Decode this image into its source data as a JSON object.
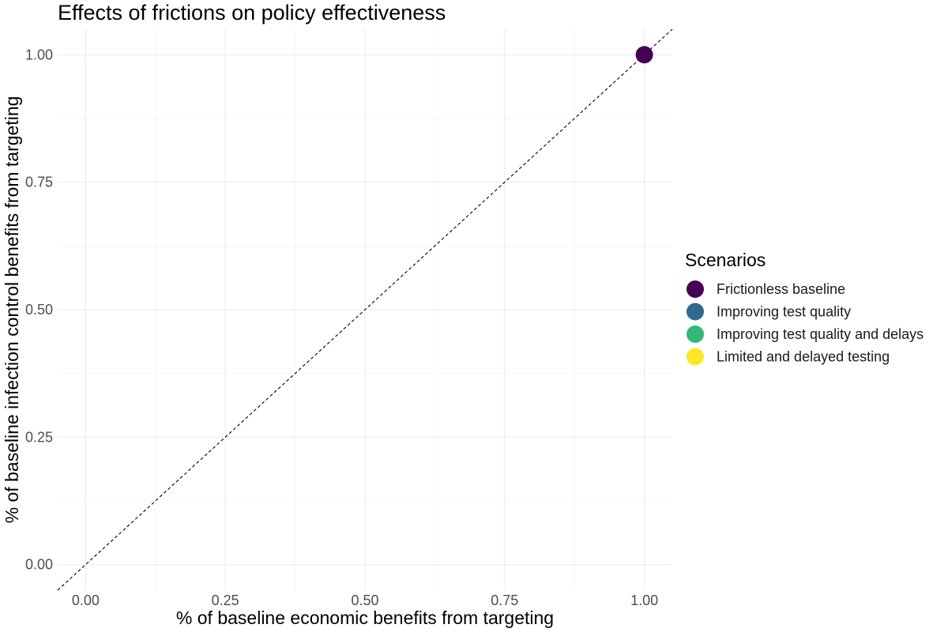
{
  "chart_data": {
    "type": "scatter",
    "title": "Effects of frictions on policy effectiveness",
    "xlabel": "% of baseline economic benefits from targeting",
    "ylabel": "% of baseline infection control benefits from targeting",
    "xlim": [
      -0.05,
      1.05
    ],
    "ylim": [
      -0.05,
      1.05
    ],
    "x_ticks": [
      "0.00",
      "0.25",
      "0.50",
      "0.75",
      "1.00"
    ],
    "y_ticks": [
      "0.00",
      "0.25",
      "0.50",
      "0.75",
      "1.00"
    ],
    "grid": true,
    "reference_line": {
      "slope": 1,
      "intercept": 0,
      "style": "dashed",
      "color": "#000000"
    },
    "legend": {
      "title": "Scenarios",
      "placement": "right",
      "entries": [
        {
          "label": "Frictionless baseline",
          "color": "#440154"
        },
        {
          "label": "Improving test quality",
          "color": "#31688E"
        },
        {
          "label": "Improving test quality and delays",
          "color": "#35B779"
        },
        {
          "label": "Limited and delayed testing",
          "color": "#FDE725"
        }
      ]
    },
    "series": [
      {
        "name": "Frictionless baseline",
        "color": "#440154",
        "points": [
          {
            "x": 1.0,
            "y": 1.0
          }
        ]
      }
    ]
  }
}
